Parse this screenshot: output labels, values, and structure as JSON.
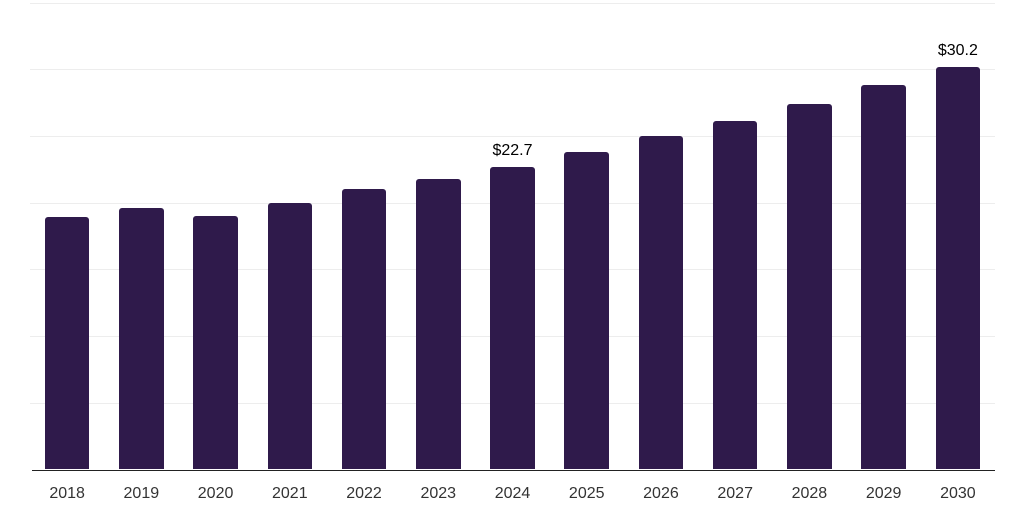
{
  "chart_data": {
    "type": "bar",
    "title": "",
    "xlabel": "",
    "ylabel": "",
    "categories": [
      "2018",
      "2019",
      "2020",
      "2021",
      "2022",
      "2023",
      "2024",
      "2025",
      "2026",
      "2027",
      "2028",
      "2029",
      "2030"
    ],
    "values": [
      18.9,
      19.6,
      19.0,
      20.0,
      21.0,
      21.8,
      22.7,
      23.8,
      25.0,
      26.1,
      27.4,
      28.8,
      30.2
    ],
    "value_labels": {
      "2024": "$22.7",
      "2030": "$30.2"
    },
    "ylim": [
      0,
      35
    ],
    "gridline_step": 5,
    "grid": true,
    "legend": "none",
    "y_axis_labels_visible": false,
    "colors": {
      "bar": "#2F1A4B",
      "gridline": "#EDEDED",
      "axis": "#222222",
      "tick_label": "#333333",
      "value_label": "#000000",
      "background": "#FFFFFF"
    }
  }
}
